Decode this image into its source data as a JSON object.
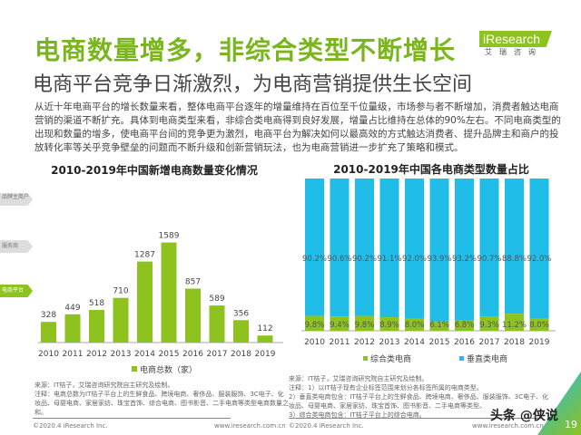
{
  "header": {
    "title": "电商数量增多，非综合类型不断增长",
    "subtitle": "电商平台竞争日渐激烈，为电商营销提供生长空间",
    "logo": "iResearch",
    "logo_sub": "艾瑞咨询"
  },
  "body_text": "从近十年电商平台的增长数量来看，整体电商平台逐年的增量维持在百位至千位量级，市场参与者不断增加，消费者触达电商营销的渠道不断扩充。具体到电商类型来看，非综合类电商得到良好发展，增量占比维持在总体的90%左右。不同电商类型的出现和数量的增多，使电商平台间的竞争更为激烈，电商平台为解决如何以最高效的方式触达消费者、提升品牌主和商户的投放转化率等关乎竞争壁垒的问题而不断升级和创新营销玩法，也为电商营销进一步扩充了策略和模式。",
  "side_tags": [
    "品牌主商户",
    "服务商",
    "电商平台"
  ],
  "colors": {
    "green": "#8dc21f",
    "blue": "#1fbde8"
  },
  "chart_data": [
    {
      "type": "bar",
      "title": "2010-2019年中国新增电商数量变化情况",
      "categories": [
        "2010",
        "2011",
        "2012",
        "2013",
        "2014",
        "2015",
        "2016",
        "2017",
        "2018",
        "2019"
      ],
      "values": [
        328,
        449,
        518,
        710,
        1287,
        1589,
        857,
        589,
        356,
        112
      ],
      "legend": "电商总数（家）",
      "ylim": [
        0,
        1700
      ]
    },
    {
      "type": "bar",
      "stacked": true,
      "percent": true,
      "title": "2010-2019年中国各电商类型数量占比",
      "categories": [
        "2010",
        "2011",
        "2012",
        "2013",
        "2014",
        "2015",
        "2016",
        "2017",
        "2018",
        "2019"
      ],
      "series": [
        {
          "name": "综合类电商",
          "values": [
            9.8,
            9.4,
            9.8,
            8.9,
            8.0,
            6.1,
            6.8,
            9.3,
            11.2,
            8.0
          ]
        },
        {
          "name": "垂直类电商",
          "values": [
            90.2,
            90.6,
            90.2,
            91.1,
            92.0,
            93.9,
            93.2,
            90.7,
            88.8,
            92.0
          ]
        }
      ],
      "ylim": [
        0,
        100
      ]
    }
  ],
  "notes_left": [
    "来源：IT桔子，艾瑞咨询研究院自主研究及绘制。",
    "注释：电商总数为IT桔子平台上的生鲜食品、跨境电商、奢侈品、服装服饰、3C电子、化妆品、母婴电商、家居家纺、珠宝首饰、综合电商、图书影音、二手电商等类型电商数量之和。"
  ],
  "notes_right": [
    "来源：IT桔子，艾瑞咨询研究院自主研究及绘制。",
    "注释：1）以IT桔子现有企业标签范围来划分各标签所属的电商类型。",
    "2）垂直类电商包含：IT桔子平台上的生鲜食品、跨境电商、奢侈品、服装服饰、3C电子、化妆品、母婴电商、家居家纺、珠宝首饰、图书影音、二手电商等类型。",
    "3）综合类电商包含：IT桔子平台上的综合电商。"
  ],
  "footer": {
    "copyright": "©2020.4 iResearch Inc.",
    "url": "www.iresearch.com.cn",
    "page": "19",
    "watermark": "头条 @侠说"
  }
}
